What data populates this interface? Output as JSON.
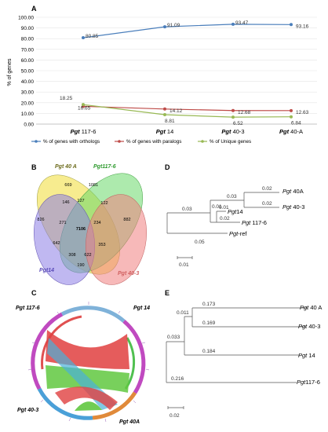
{
  "panels": {
    "a": "A",
    "b": "B",
    "c": "C",
    "d": "D",
    "e": "E"
  },
  "chart_data": {
    "type": "line",
    "ylabel": "% of genes",
    "ylim": [
      0,
      100
    ],
    "yticks": [
      "0.00",
      "10.00",
      "20.00",
      "30.00",
      "40.00",
      "50.00",
      "60.00",
      "70.00",
      "80.00",
      "90.00",
      "100.00"
    ],
    "categories": [
      {
        "bold": "Pgt",
        "rest": " 117-6"
      },
      {
        "bold": "Pgt",
        "rest": " 14"
      },
      {
        "bold": "Pgt",
        "rest": " 40-3"
      },
      {
        "bold": "Pgt",
        "rest": " 40-A"
      }
    ],
    "series": [
      {
        "name": "% of genes with orthologs",
        "color": "#4a7ebb",
        "values": [
          80.85,
          91.09,
          93.47,
          93.16
        ],
        "labels": [
          "80.85",
          "91.09",
          "93.47",
          "93.16"
        ]
      },
      {
        "name": "% of genes with paralogs",
        "color": "#be4b48",
        "values": [
          16.65,
          14.12,
          12.68,
          12.63
        ],
        "labels": [
          "16.65",
          "14.12",
          "12.68",
          "12.63"
        ]
      },
      {
        "name": "% of Unique genes",
        "color": "#98b954",
        "values": [
          18.25,
          8.81,
          6.52,
          6.84
        ],
        "labels": [
          "18.25",
          "8.81",
          "6.52",
          "6.84"
        ]
      }
    ]
  },
  "venn": {
    "sets": [
      {
        "label": "Pgt 40 A",
        "color": "#f2e04a",
        "text_color": "#6b6a1a"
      },
      {
        "label": "Pgt117-6",
        "color": "#6ad86a",
        "text_color": "#2e9a2e"
      },
      {
        "label": "Pgt14",
        "color": "#8c7ee6",
        "text_color": "#5a4ab8"
      },
      {
        "label": "Pgt 40-3",
        "color": "#f08080",
        "text_color": "#d06060"
      }
    ],
    "counts": [
      "669",
      "1081",
      "826",
      "882",
      "146",
      "127",
      "122",
      "271",
      "234",
      "7106",
      "642",
      "353",
      "308",
      "622",
      "190"
    ]
  },
  "tree_d": {
    "leaves": [
      {
        "bold": "Pgt",
        "rest": " 40A"
      },
      {
        "bold": "Pgt",
        "rest": " 40-3"
      },
      {
        "bold": "Pgt",
        "rest": "14"
      },
      {
        "bold": "Pgt",
        "rest": " 117-6"
      },
      {
        "bold": "Pgt",
        "rest": "-ref"
      }
    ],
    "branch_labels": [
      "0.02",
      "0.02",
      "0.03",
      "0.01",
      "0.01",
      "0.02",
      "0.03",
      "0.05"
    ],
    "scale": "0.01"
  },
  "circos": {
    "labels": [
      "Pgt 117-6",
      "Pgt 14",
      "Pgt 40-3",
      "Pgt 40A"
    ]
  },
  "tree_e": {
    "leaves": [
      {
        "bold": "Pgt",
        "rest": " 40 A"
      },
      {
        "bold": "Pgt",
        "rest": " 40-3"
      },
      {
        "bold": "Pgt",
        "rest": " 14"
      },
      {
        "bold": "Pgt",
        "rest": "117-6"
      }
    ],
    "branch_labels": [
      "0.173",
      "0.011",
      "0.169",
      "0.033",
      "0.184",
      "0.216"
    ],
    "scale": "0.02"
  }
}
